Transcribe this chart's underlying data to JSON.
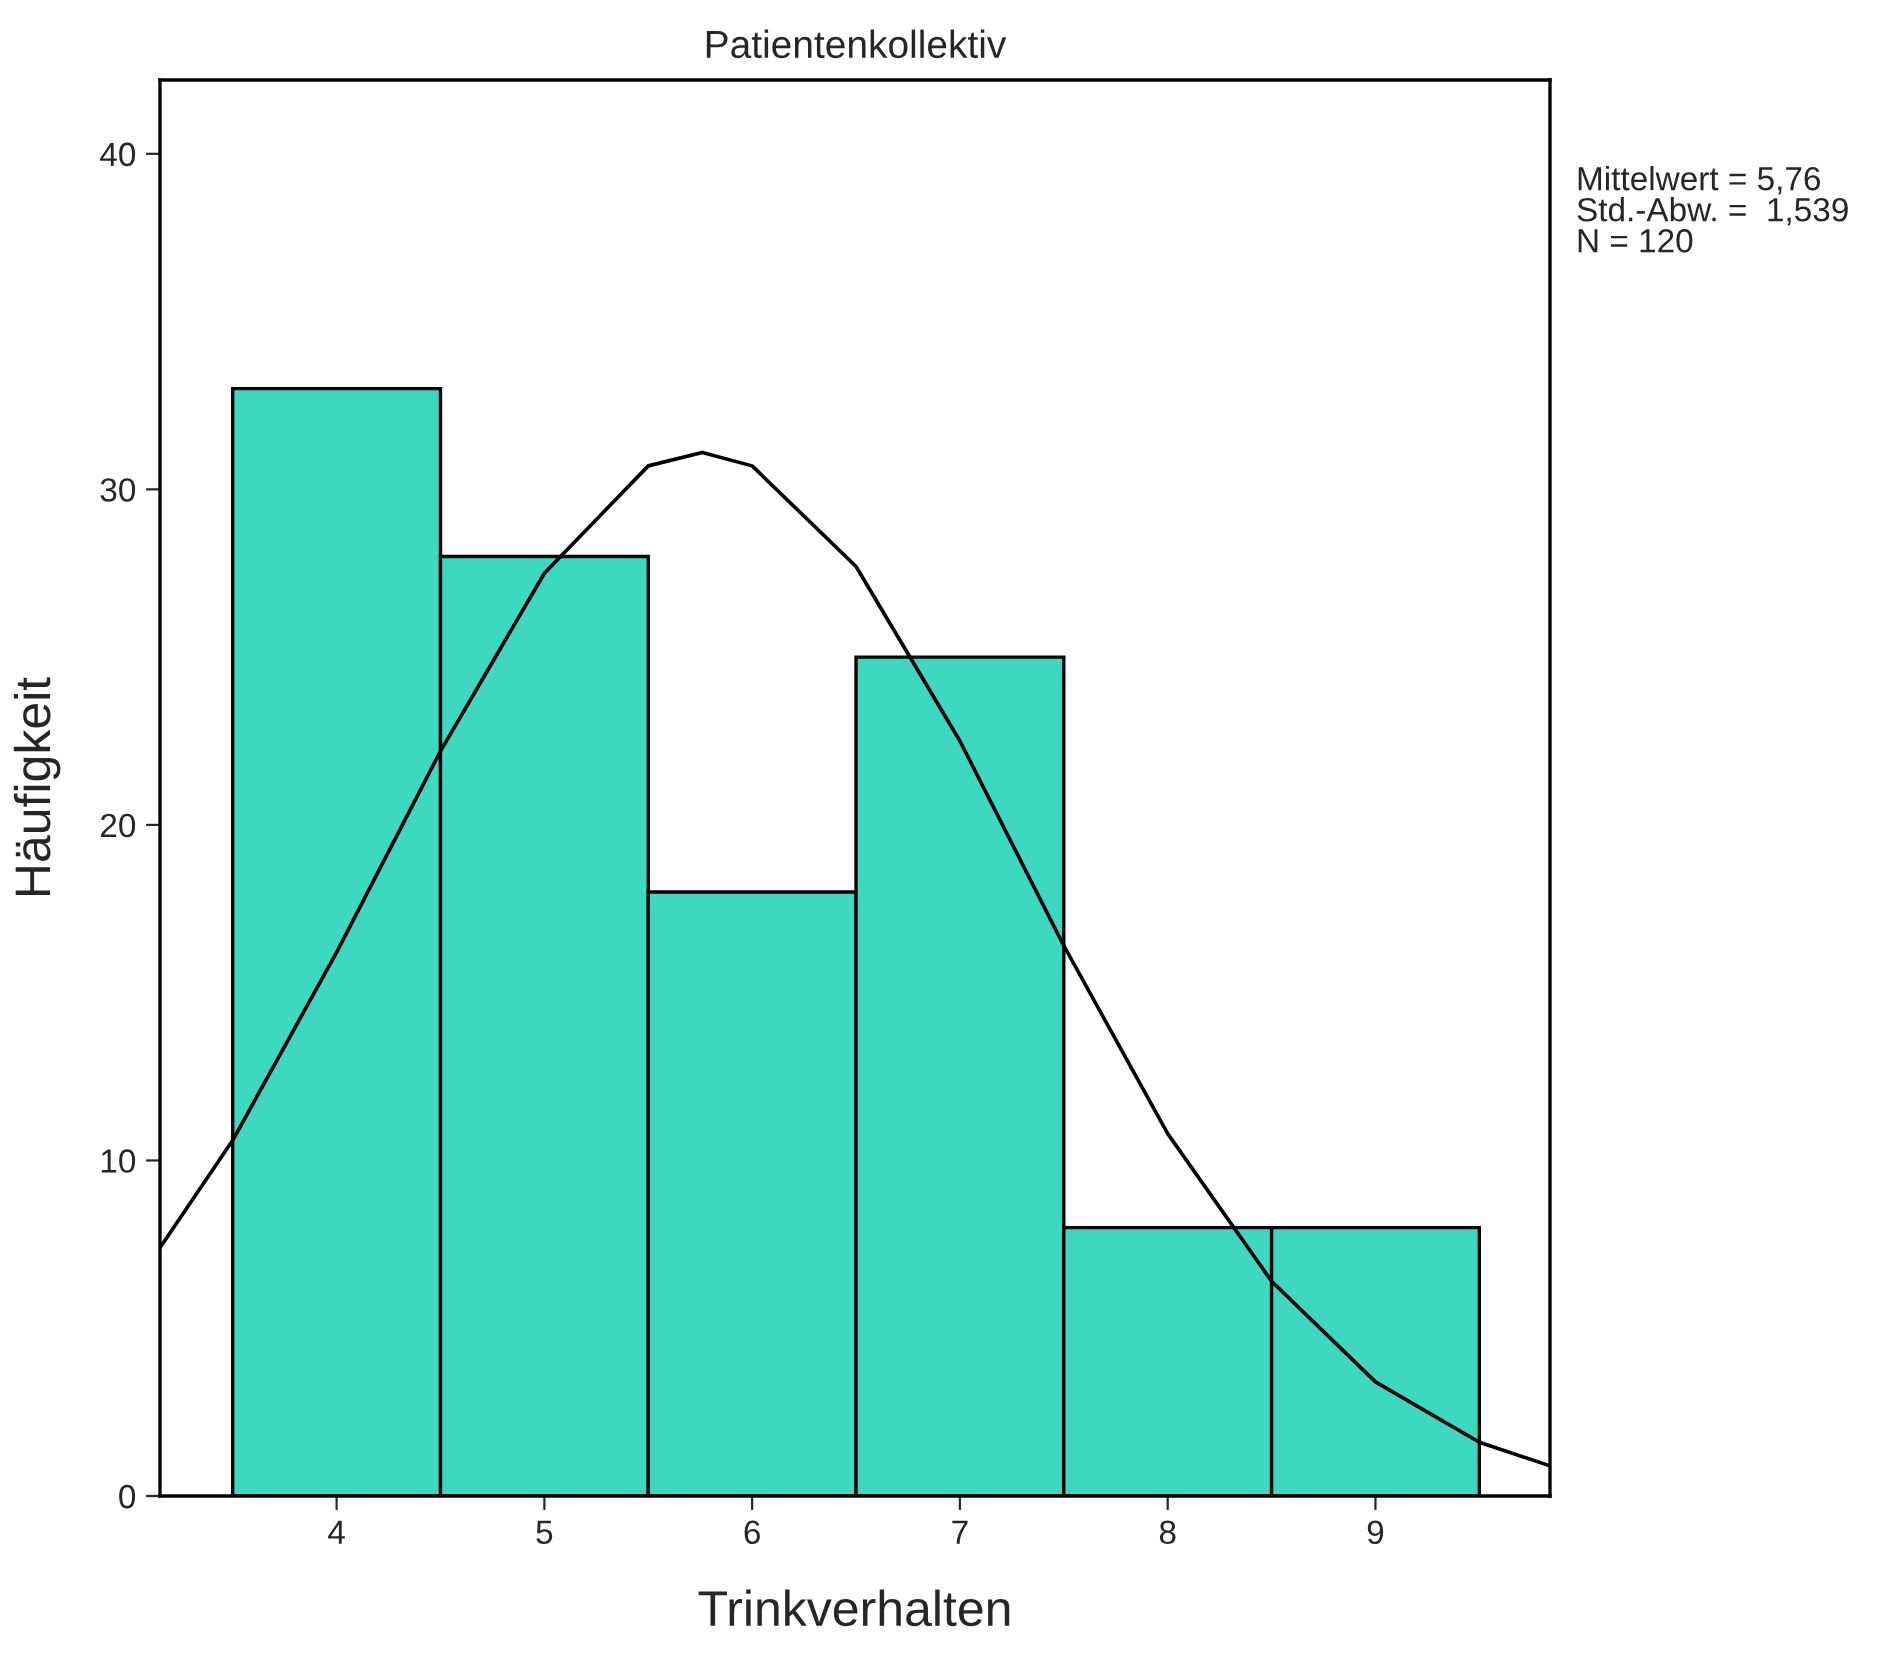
{
  "chart_data": {
    "type": "histogram",
    "title": "Patientenkollektiv",
    "xlabel": "Trinkverhalten",
    "ylabel": "Häufigkeit",
    "series": [
      {
        "color": "#3dd8c0",
        "bins": [
          3.5,
          4.5,
          5.5,
          6.5,
          7.5,
          8.5,
          9.5
        ],
        "values": [
          33,
          28,
          18,
          25,
          8,
          8
        ]
      },
      {
        "type": "line",
        "color": "#000000",
        "x": [
          3.15,
          3.5,
          4,
          4.5,
          5,
          5.5,
          5.76,
          6,
          6.5,
          7,
          7.5,
          8,
          8.5,
          9,
          9.5,
          9.84
        ],
        "values": [
          7.4,
          10.6,
          16.2,
          22.2,
          27.5,
          30.7,
          31.1,
          30.7,
          27.7,
          22.5,
          16.4,
          10.8,
          6.4,
          3.4,
          1.6,
          0.9
        ]
      }
    ],
    "xlim": [
      3.15,
      9.84
    ],
    "ylim": [
      0,
      42.2
    ],
    "xticks": [
      4,
      5,
      6,
      7,
      8,
      9
    ],
    "yticks": [
      0,
      10,
      20,
      30,
      40
    ],
    "grid": false,
    "legend": false,
    "annotations": [
      "Mittelwert = 5,76",
      "Std.-Abw. =  1,539",
      "N = 120"
    ]
  }
}
